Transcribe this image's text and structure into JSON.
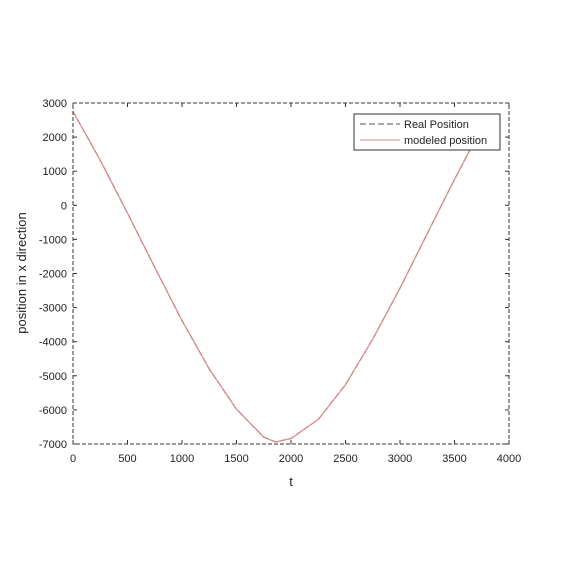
{
  "chart_data": {
    "type": "line",
    "title": "",
    "xlabel": "t",
    "ylabel": "position in x direction",
    "xlim": [
      0,
      4000
    ],
    "ylim": [
      -7000,
      3000
    ],
    "xticks": [
      "0",
      "500",
      "1000",
      "1500",
      "2000",
      "2500",
      "3000",
      "3500",
      "4000"
    ],
    "yticks": [
      "3000",
      "2000",
      "1000",
      "0",
      "-1000",
      "-2000",
      "-3000",
      "-4000",
      "-5000",
      "-6000",
      "-7000"
    ],
    "grid": false,
    "legend_position": "top-right",
    "series": [
      {
        "name": "Real Position",
        "style": "dashed",
        "color": "#555555",
        "x": [
          0,
          250,
          500,
          750,
          1000,
          1250,
          1500,
          1750,
          1860,
          2000,
          2250,
          2500,
          2750,
          3000,
          3250,
          3500,
          3720
        ],
        "y": [
          2750,
          1320,
          -230,
          -1820,
          -3380,
          -4800,
          -5980,
          -6800,
          -6940,
          -6840,
          -6280,
          -5260,
          -3920,
          -2430,
          -830,
          760,
          2100
        ]
      },
      {
        "name": "modeled position",
        "style": "solid",
        "color": "#d98c8c",
        "x": [
          0,
          250,
          500,
          750,
          1000,
          1250,
          1500,
          1750,
          1860,
          2000,
          2250,
          2500,
          2750,
          3000,
          3250,
          3500,
          3720
        ],
        "y": [
          2750,
          1320,
          -230,
          -1820,
          -3380,
          -4800,
          -5980,
          -6800,
          -6940,
          -6840,
          -6280,
          -5260,
          -3920,
          -2430,
          -830,
          760,
          2100
        ]
      }
    ]
  }
}
